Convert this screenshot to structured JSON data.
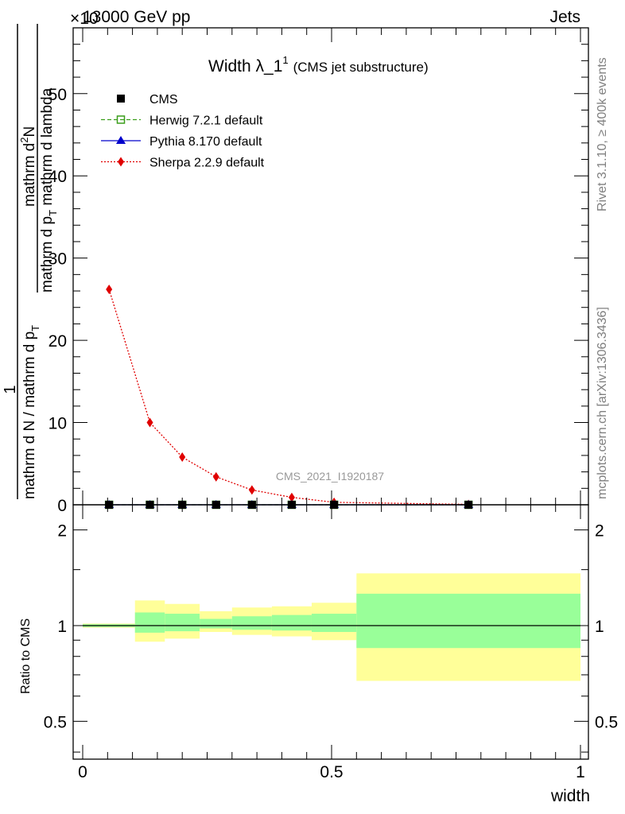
{
  "header": {
    "energy": "13000 GeV pp",
    "process": "Jets",
    "exponent": "×10"
  },
  "side_texts": {
    "rivet": "Rivet 3.1.10, ≥ 400k events",
    "mcplots": "mcplots.cern.ch [arXiv:1306.3436]"
  },
  "watermark": "CMS_2021_I1920187",
  "title": {
    "main": "Width λ_1",
    "sup": "1",
    "sub": "(CMS jet substructure)"
  },
  "ylabel_main": {
    "numerator_1": "1",
    "denominator_1": "mathrm d N / mathrm d p",
    "denominator_1_sub": "T",
    "numerator_2": "mathrm d",
    "numerator_2_sup": "2",
    "numerator_2_tail": "N",
    "denominator_2": "mathrm d p",
    "denominator_2_sub": "T",
    "denominator_2_tail": " mathrm d lambda"
  },
  "ylabel_ratio": "Ratio to CMS",
  "xlabel": "width",
  "legend": [
    {
      "label": "CMS",
      "color": "#000000",
      "marker": "square-filled",
      "line": "none"
    },
    {
      "label": "Herwig 7.2.1 default",
      "color": "#3a9e1a",
      "marker": "square-open",
      "line": "dashed"
    },
    {
      "label": "Pythia 8.170 default",
      "color": "#0000cc",
      "marker": "triangle",
      "line": "solid"
    },
    {
      "label": "Sherpa 2.2.9 default",
      "color": "#e00000",
      "marker": "diamond",
      "line": "dotted"
    }
  ],
  "chart_data": {
    "type": "line",
    "xlim": [
      0,
      1
    ],
    "ylim": [
      0,
      58
    ],
    "y_ticks": [
      0,
      10,
      20,
      30,
      40,
      50
    ],
    "x_ticks": [
      0,
      0.5,
      1
    ],
    "x_tick_labels": [
      "0",
      "0.5",
      "1"
    ],
    "bin_edges": [
      0,
      0.105,
      0.165,
      0.235,
      0.3,
      0.38,
      0.46,
      0.55,
      1.0
    ],
    "x": [
      0.053,
      0.135,
      0.2,
      0.268,
      0.34,
      0.42,
      0.505,
      0.775
    ],
    "series": [
      {
        "name": "CMS",
        "values": [
          0,
          0,
          0,
          0,
          0,
          0,
          0,
          0
        ]
      },
      {
        "name": "Herwig 7.2.1 default",
        "values": [
          0,
          0,
          0,
          0,
          0,
          0,
          0,
          0
        ]
      },
      {
        "name": "Pythia 8.170 default",
        "values": [
          0,
          0,
          0,
          0,
          0,
          0,
          0,
          0
        ]
      },
      {
        "name": "Sherpa 2.2.9 default",
        "values": [
          26.2,
          10.0,
          5.8,
          3.4,
          1.8,
          0.9,
          0.3,
          0.05
        ]
      }
    ],
    "ratio": {
      "ylim": [
        0.38,
        2.4
      ],
      "y_ticks": [
        0.5,
        1,
        2
      ],
      "y_tick_labels": [
        "0.5",
        "1",
        "2"
      ],
      "inner_band": [
        {
          "lo": 0.99,
          "hi": 1.01
        },
        {
          "lo": 0.95,
          "hi": 1.1
        },
        {
          "lo": 0.96,
          "hi": 1.09
        },
        {
          "lo": 0.98,
          "hi": 1.05
        },
        {
          "lo": 0.97,
          "hi": 1.07
        },
        {
          "lo": 0.965,
          "hi": 1.08
        },
        {
          "lo": 0.955,
          "hi": 1.09
        },
        {
          "lo": 0.85,
          "hi": 1.26
        }
      ],
      "outer_band": [
        {
          "lo": 0.985,
          "hi": 1.015
        },
        {
          "lo": 0.89,
          "hi": 1.2
        },
        {
          "lo": 0.91,
          "hi": 1.17
        },
        {
          "lo": 0.955,
          "hi": 1.11
        },
        {
          "lo": 0.935,
          "hi": 1.14
        },
        {
          "lo": 0.925,
          "hi": 1.15
        },
        {
          "lo": 0.9,
          "hi": 1.18
        },
        {
          "lo": 0.67,
          "hi": 1.46
        }
      ],
      "inner_color": "#99ff99",
      "outer_color": "#ffff99"
    }
  }
}
